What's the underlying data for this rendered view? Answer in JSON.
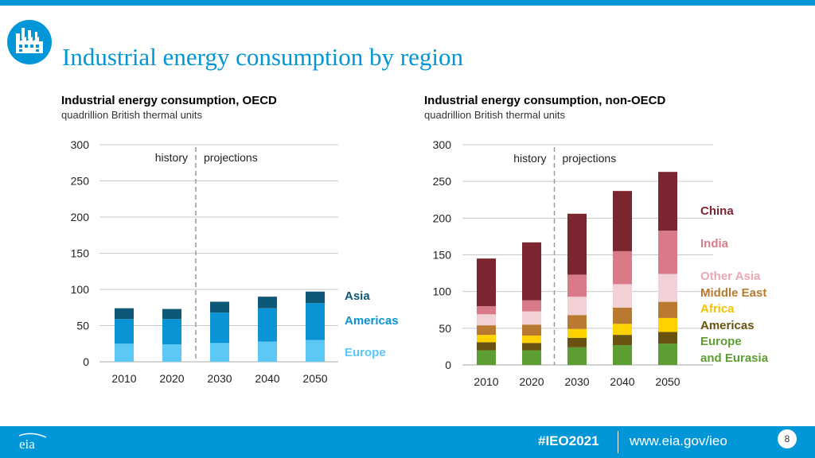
{
  "page": {
    "title": "Industrial energy consumption by region"
  },
  "colors": {
    "brand": "#0096d7"
  },
  "footer": {
    "hashtag": "#IEO2021",
    "url": "www.eia.gov/ieo",
    "page_number": "8",
    "logo_text": "eia"
  },
  "chart_data": [
    {
      "type": "bar",
      "stacked": true,
      "title": "Industrial energy consumption, OECD",
      "subtitle": "quadrillion British thermal units",
      "categories": [
        "2010",
        "2020",
        "2030",
        "2040",
        "2050"
      ],
      "ylim": [
        0,
        300
      ],
      "yticks": [
        0,
        50,
        100,
        150,
        200,
        250,
        300
      ],
      "annotations": {
        "history": "history",
        "projections": "projections",
        "divider_between": [
          "2020",
          "2030"
        ]
      },
      "series": [
        {
          "name": "Europe",
          "color": "#5bc8f5",
          "values": [
            25,
            24,
            26,
            28,
            30
          ]
        },
        {
          "name": "Americas",
          "color": "#0a93d5",
          "values": [
            34,
            35,
            42,
            46,
            51
          ]
        },
        {
          "name": "Asia",
          "color": "#0d5877",
          "values": [
            15,
            14,
            15,
            16,
            16
          ]
        }
      ],
      "legend": [
        {
          "text": "Asia",
          "color": "#0d5877"
        },
        {
          "text": "Americas",
          "color": "#0a93d5"
        },
        {
          "text": "Europe",
          "color": "#5bc8f5"
        }
      ]
    },
    {
      "type": "bar",
      "stacked": true,
      "title": "Industrial energy consumption, non-OECD",
      "subtitle": "quadrillion British thermal units",
      "categories": [
        "2010",
        "2020",
        "2030",
        "2040",
        "2050"
      ],
      "ylim": [
        0,
        300
      ],
      "yticks": [
        0,
        50,
        100,
        150,
        200,
        250,
        300
      ],
      "annotations": {
        "history": "history",
        "projections": "projections",
        "divider_between": [
          "2020",
          "2030"
        ]
      },
      "series": [
        {
          "name": "Europe and Eurasia",
          "color": "#5c9e31",
          "values": [
            20,
            20,
            24,
            27,
            29
          ]
        },
        {
          "name": "Americas",
          "color": "#6a5210",
          "values": [
            11,
            10,
            13,
            14,
            16
          ]
        },
        {
          "name": "Africa",
          "color": "#ffd200",
          "values": [
            10,
            10,
            12,
            15,
            19
          ]
        },
        {
          "name": "Middle East",
          "color": "#b97930",
          "values": [
            13,
            15,
            19,
            22,
            22
          ]
        },
        {
          "name": "Other Asia",
          "color": "#f2d1d6",
          "values": [
            15,
            18,
            25,
            32,
            38
          ]
        },
        {
          "name": "India",
          "color": "#d97a88",
          "values": [
            11,
            15,
            30,
            45,
            59
          ]
        },
        {
          "name": "China",
          "color": "#7b2530",
          "values": [
            65,
            79,
            83,
            82,
            80
          ]
        }
      ],
      "legend": [
        {
          "text": "China",
          "color": "#7b2530"
        },
        {
          "text": "India",
          "color": "#d97a88"
        },
        {
          "text": "Other Asia",
          "color": "#e8a9b2"
        },
        {
          "text": "Middle East",
          "color": "#b97930"
        },
        {
          "text": "Africa",
          "color": "#f2c400"
        },
        {
          "text": "Americas",
          "color": "#6a5210"
        },
        {
          "text": "Europe",
          "color": "#5c9e31"
        },
        {
          "text": "and Eurasia",
          "color": "#5c9e31"
        }
      ]
    }
  ]
}
